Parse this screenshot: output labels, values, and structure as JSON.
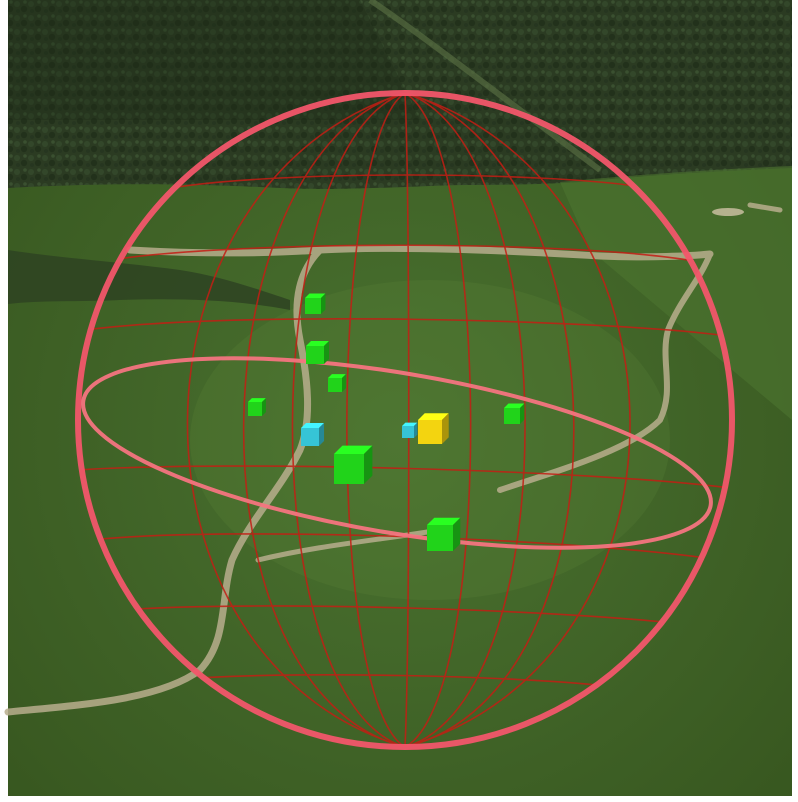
{
  "scene": {
    "colors": {
      "forest": "#2b3b22",
      "forest_dark": "#1e2b18",
      "meadow": "#3f6428",
      "meadow_light": "#4d7431",
      "meadow_dark": "#33521f",
      "path": "#b8ae8d",
      "sphere_outline": "#f2566a",
      "sphere_grid": "#c41e14",
      "equator": "#f47480",
      "marker_green": "#21d31a",
      "marker_cyan": "#36c4d6",
      "marker_yellow": "#f3d410"
    },
    "markers": [
      {
        "kind": "green",
        "icon": "green-cube-marker"
      },
      {
        "kind": "green",
        "icon": "green-cube-marker"
      },
      {
        "kind": "green",
        "icon": "green-cube-marker"
      },
      {
        "kind": "green",
        "icon": "green-cube-marker"
      },
      {
        "kind": "green",
        "icon": "green-cube-marker"
      },
      {
        "kind": "green",
        "icon": "green-cube-marker"
      },
      {
        "kind": "green",
        "icon": "green-cube-marker"
      },
      {
        "kind": "cyan",
        "icon": "cyan-cube-marker"
      },
      {
        "kind": "cyan",
        "icon": "cyan-cube-marker"
      },
      {
        "kind": "yellow",
        "icon": "yellow-cube-marker"
      }
    ]
  }
}
